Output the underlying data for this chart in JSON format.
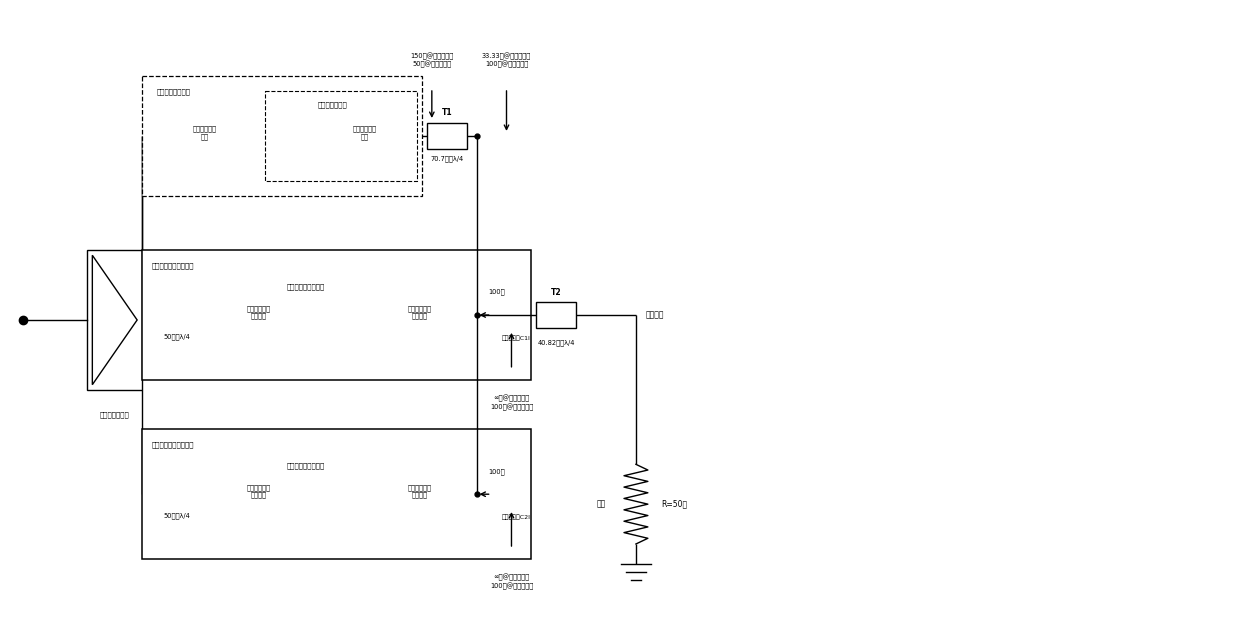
{
  "fig_width": 12.4,
  "fig_height": 6.29,
  "bg_color": "#ffffff",
  "labels": {
    "splitter": "三路等功分分器",
    "power_out": "功率输出",
    "load": "负载",
    "R_load": "R=50欧",
    "T1_label": "T1",
    "T2_label": "T2",
    "T1_val": "70.7欧，λ/4",
    "T2_val": "40.82欧，λ/4",
    "carrier_block_title": "载波功率放大电路",
    "carrier_amp_title": "载波功率放大器",
    "carrier_in_match": "载波输入匹配\n电路",
    "carrier_out_match": "载波输出匹配\n电路",
    "peak1_block_title": "第一峰值功率放大电路",
    "peak1_amp_title": "第一峰值功率放大器",
    "peak1_in_50": "50欧，λ/4",
    "peak1_in_match": "第一峰值输入\n匹配电路",
    "peak1_out_match": "第一峰值输出\n匹配电路",
    "peak1_100": "100欧",
    "peak1_comp": "第一补偿线C1l",
    "peak2_block_title": "第二峰值功率放大电路",
    "peak2_amp_title": "第二峰值功率放大器",
    "peak2_in_50": "50欧，λ/4",
    "peak2_in_match": "第二峰值输入\n匹配电路",
    "peak2_out_match": "第二峰值输出\n匹配电路",
    "peak2_100": "100欧",
    "peak2_comp": "第二补偿线C2l",
    "ann_carrier_left": "150欧@低输入功率\n50欧@高输入功率",
    "ann_carrier_right": "33.33欧@低输入功率\n100欧@高输入功率",
    "ann_peak1_bottom": "∞欧@低输入功率\n100欧@高输入功率",
    "ann_peak2_bottom": "∞欧@低输入功率\n100欧@高输入功率"
  }
}
